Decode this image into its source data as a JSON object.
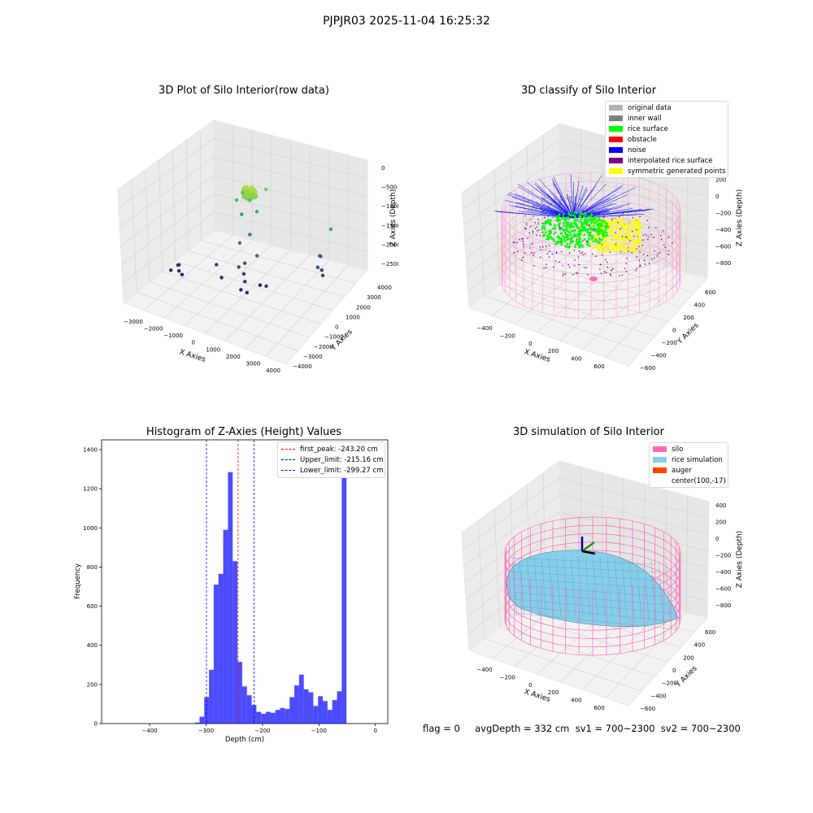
{
  "suptitle": "PJPJR03 2025-11-04 16:25:32",
  "panels": {
    "raw": {
      "title": "3D Plot of Silo Interior(row data)",
      "xlabel": "X Axies",
      "ylabel": "Y Axies",
      "zlabel": "Z Axies (Depth)",
      "xticks": [
        "−3000",
        "−2000",
        "−1000",
        "0",
        "1000",
        "2000",
        "3000",
        "4000"
      ],
      "yticks": [
        "−4000",
        "−3000",
        "−2000",
        "−1000",
        "0",
        "1000",
        "2000",
        "3000",
        "4000"
      ],
      "zticks": [
        "0",
        "−500",
        "−1000",
        "−1500",
        "−2000",
        "−2500"
      ]
    },
    "classify": {
      "title": "3D classify of Silo Interior",
      "xlabel": "X Axies",
      "ylabel": "Y Axies",
      "zlabel": "Z Axies (Depth)",
      "xticks": [
        "−400",
        "−200",
        "0",
        "200",
        "400",
        "600"
      ],
      "yticks": [
        "−600",
        "−400",
        "−200",
        "0",
        "200",
        "400",
        "600"
      ],
      "zticks": [
        "400",
        "200",
        "0",
        "−200",
        "−400",
        "−600",
        "−800"
      ],
      "legend": [
        {
          "label": "original data",
          "color": "#b0b0b0"
        },
        {
          "label": "inner wall",
          "color": "#808080"
        },
        {
          "label": "rice surface",
          "color": "#00ff00"
        },
        {
          "label": "obstacle",
          "color": "#ff0000"
        },
        {
          "label": "noise",
          "color": "#0000ff"
        },
        {
          "label": "interpolated rice surface",
          "color": "#800080"
        },
        {
          "label": "symmetric generated points",
          "color": "#ffff00"
        }
      ]
    },
    "histogram": {
      "title": "Histogram of Z-Axies (Height) Values",
      "xlabel": "Depth (cm)",
      "ylabel": "Frequency",
      "legend": [
        {
          "label": "first_peak: -243.20 cm",
          "color": "#ff0000"
        },
        {
          "label": "Upper_limit: -215.16 cm",
          "color": "#0000ff"
        },
        {
          "label": "Lower_limit: -299.27 cm",
          "color": "#0000ff"
        }
      ]
    },
    "simulation": {
      "title": "3D simulation of Silo Interior",
      "xlabel": "X Axies",
      "ylabel": "Y Axies",
      "zlabel": "Z Axies (Depth)",
      "xticks": [
        "−400",
        "−200",
        "0",
        "200",
        "400",
        "600"
      ],
      "yticks": [
        "−600",
        "−400",
        "−200",
        "0",
        "200",
        "400",
        "600"
      ],
      "zticks": [
        "400",
        "200",
        "0",
        "−200",
        "−400",
        "−600",
        "−800"
      ],
      "legend": [
        {
          "label": "silo",
          "color": "#ff69b4"
        },
        {
          "label": "rice simulation",
          "color": "#87ceeb"
        },
        {
          "label": "auger",
          "color": "#ff4500"
        },
        {
          "label": "center(100,-17)",
          "color": ""
        }
      ]
    }
  },
  "footer": "flag = 0     avgDepth = 332 cm  sv1 = 700~2300  sv2 = 700~2300",
  "chart_data": [
    {
      "type": "scatter",
      "title": "3D Plot of Silo Interior(row data)",
      "xlabel": "X Axies",
      "ylabel": "Y Axies",
      "zlabel": "Z Axies (Depth)",
      "xlim": [
        -3500,
        4500
      ],
      "ylim": [
        -4500,
        4500
      ],
      "zlim": [
        -2900,
        100
      ]
    },
    {
      "type": "scatter",
      "title": "3D classify of Silo Interior",
      "xlabel": "X Axies",
      "ylabel": "Y Axies",
      "zlabel": "Z Axies (Depth)",
      "xlim": [
        -500,
        700
      ],
      "ylim": [
        -700,
        700
      ],
      "zlim": [
        -900,
        300
      ],
      "series": [
        {
          "name": "original data"
        },
        {
          "name": "inner wall"
        },
        {
          "name": "rice surface"
        },
        {
          "name": "obstacle"
        },
        {
          "name": "noise"
        },
        {
          "name": "interpolated rice surface"
        },
        {
          "name": "symmetric generated points"
        }
      ]
    },
    {
      "type": "bar",
      "title": "Histogram of Z-Axies (Height) Values",
      "xlabel": "Depth (cm)",
      "ylabel": "Frequency",
      "xlim": [
        -485,
        22
      ],
      "ylim": [
        0,
        1450
      ],
      "xticks": [
        -400,
        -300,
        -200,
        -100,
        0
      ],
      "yticks": [
        0,
        200,
        400,
        600,
        800,
        1000,
        1200,
        1400
      ],
      "bin_start": -320,
      "bin_width": 8.4,
      "values": [
        5,
        35,
        135,
        275,
        710,
        765,
        990,
        1285,
        830,
        315,
        190,
        145,
        95,
        60,
        50,
        60,
        55,
        70,
        80,
        75,
        135,
        195,
        250,
        175,
        160,
        90,
        140,
        115,
        70,
        120,
        165,
        1355
      ],
      "vlines": [
        {
          "x": -243.2,
          "label": "first_peak: -243.20 cm",
          "color": "#ff0000"
        },
        {
          "x": -215.16,
          "label": "Upper_limit: -215.16 cm",
          "color": "#0000ff"
        },
        {
          "x": -299.27,
          "label": "Lower_limit: -299.27 cm",
          "color": "#0000ff"
        }
      ]
    },
    {
      "type": "area",
      "title": "3D simulation of Silo Interior",
      "xlabel": "X Axies",
      "ylabel": "Y Axies",
      "zlabel": "Z Axies (Depth)",
      "xlim": [
        -500,
        700
      ],
      "ylim": [
        -700,
        700
      ],
      "zlim": [
        -900,
        450
      ],
      "series": [
        {
          "name": "silo"
        },
        {
          "name": "rice simulation"
        },
        {
          "name": "auger"
        },
        {
          "name": "center(100,-17)"
        }
      ]
    }
  ]
}
